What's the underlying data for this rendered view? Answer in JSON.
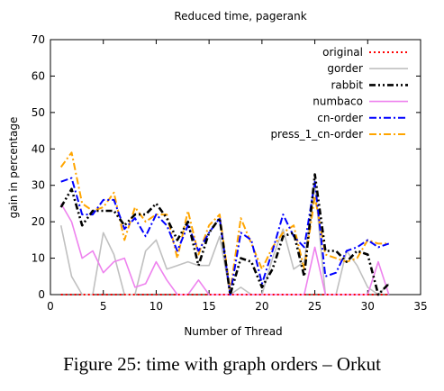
{
  "caption": "Figure 25: time with graph orders – Orkut",
  "chart_data": {
    "type": "line",
    "title": "Reduced time, pagerank",
    "xlabel": "Number of Thread",
    "ylabel": "gain in percentage",
    "xlim": [
      0,
      35
    ],
    "ylim": [
      0,
      70
    ],
    "xticks": [
      0,
      5,
      10,
      15,
      20,
      25,
      30,
      35
    ],
    "yticks": [
      0,
      10,
      20,
      30,
      40,
      50,
      60,
      70
    ],
    "grid": false,
    "legend_position": "top-right",
    "x": [
      1,
      2,
      3,
      4,
      5,
      6,
      7,
      8,
      9,
      10,
      11,
      12,
      13,
      14,
      15,
      16,
      17,
      18,
      19,
      20,
      21,
      22,
      23,
      24,
      25,
      26,
      27,
      28,
      29,
      30,
      31,
      32
    ],
    "series": [
      {
        "name": "original",
        "color": "#ff0000",
        "dash": "dots",
        "values": [
          0,
          0,
          0,
          0,
          0,
          0,
          0,
          0,
          0,
          0,
          0,
          0,
          0,
          0,
          0,
          0,
          0,
          0,
          0,
          0,
          0,
          0,
          0,
          0,
          0,
          0,
          0,
          0,
          0,
          0,
          0,
          0
        ]
      },
      {
        "name": "gorder",
        "color": "#c0c0c0",
        "dash": "solid",
        "values": [
          19,
          5,
          0,
          0,
          17,
          11,
          0,
          0,
          12,
          15,
          7,
          8,
          9,
          8,
          8,
          16,
          0,
          2,
          0,
          0,
          10,
          18,
          7,
          9,
          30,
          0,
          0,
          12,
          8,
          2,
          0,
          3
        ]
      },
      {
        "name": "rabbit",
        "color": "#000000",
        "dash": "dashdotdot",
        "values": [
          24,
          29,
          19,
          23,
          23,
          23,
          19,
          22,
          22,
          25,
          21,
          15,
          20,
          8,
          17,
          21,
          0,
          10,
          9,
          2,
          7,
          16,
          17,
          5,
          33,
          12,
          12,
          9,
          12,
          11,
          0,
          3
        ]
      },
      {
        "name": "numbaco",
        "color": "#ee82ee",
        "dash": "solid",
        "values": [
          25,
          20,
          10,
          12,
          6,
          9,
          10,
          2,
          3,
          9,
          4,
          0,
          0,
          4,
          0,
          0,
          0,
          0,
          0,
          0,
          0,
          0,
          0,
          0,
          13,
          0,
          0,
          0,
          0,
          0,
          9,
          0
        ]
      },
      {
        "name": "cn-order",
        "color": "#0000ff",
        "dash": "dashdot",
        "values": [
          31,
          32,
          22,
          22,
          26,
          26,
          18,
          21,
          16,
          22,
          19,
          12,
          19,
          12,
          17,
          21,
          0,
          17,
          15,
          3,
          12,
          22,
          16,
          13,
          31,
          5,
          6,
          12,
          13,
          15,
          13,
          14
        ]
      },
      {
        "name": "press_1_cn-order",
        "color": "#ffa500",
        "dash": "dashdot",
        "values": [
          35,
          39,
          25,
          23,
          24,
          28,
          15,
          24,
          20,
          22,
          22,
          10,
          23,
          11,
          19,
          22,
          1,
          21,
          14,
          7,
          13,
          17,
          19,
          7,
          27,
          11,
          10,
          9,
          10,
          15,
          14,
          14
        ]
      }
    ]
  }
}
